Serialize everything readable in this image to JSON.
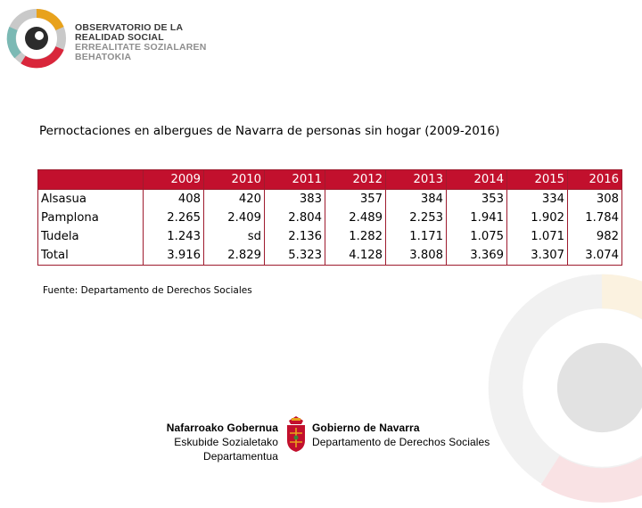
{
  "header": {
    "org_lines": [
      "OBSERVATORIO DE LA",
      "REALIDAD SOCIAL",
      "ERREALITATE SOZIALAREN",
      "BEHATOKIA"
    ],
    "colors": {
      "red": "#d9263b",
      "gold": "#e8a21c",
      "teal": "#7bb9b4",
      "grey": "#c9c9c9",
      "dark": "#2b2b2b"
    }
  },
  "title": "Pernoctaciones en albergues de Navarra de personas sin hogar (2009-2016)",
  "table": {
    "header_color": "#c2102d",
    "years": [
      "2009",
      "2010",
      "2011",
      "2012",
      "2013",
      "2014",
      "2015",
      "2016"
    ],
    "rows": [
      {
        "label": "Alsasua",
        "values": [
          "408",
          "420",
          "383",
          "357",
          "384",
          "353",
          "334",
          "308"
        ]
      },
      {
        "label": "Pamplona",
        "values": [
          "2.265",
          "2.409",
          "2.804",
          "2.489",
          "2.253",
          "1.941",
          "1.902",
          "1.784"
        ]
      },
      {
        "label": "Tudela",
        "values": [
          "1.243",
          "sd",
          "2.136",
          "1.282",
          "1.171",
          "1.075",
          "1.071",
          "982"
        ]
      },
      {
        "label": "Total",
        "values": [
          "3.916",
          "2.829",
          "5.323",
          "4.128",
          "3.808",
          "3.369",
          "3.307",
          "3.074"
        ]
      }
    ]
  },
  "source": "Fuente: Departamento de Derechos Sociales",
  "footer": {
    "eu_line1": "Nafarroako Gobernua",
    "eu_line2": "Eskubide Sozialetako Departamentua",
    "es_line1": "Gobierno de Navarra",
    "es_line2": "Departamento de Derechos Sociales"
  }
}
